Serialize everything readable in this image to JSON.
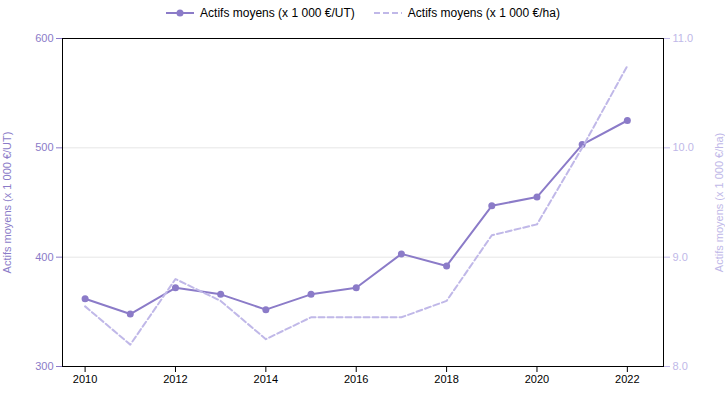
{
  "chart_data": {
    "type": "line",
    "x": [
      2010,
      2011,
      2012,
      2013,
      2014,
      2015,
      2016,
      2017,
      2018,
      2019,
      2020,
      2021,
      2022
    ],
    "xlim": [
      2009.5,
      2022.8
    ],
    "xticks": [
      2010,
      2012,
      2014,
      2016,
      2018,
      2020,
      2022
    ],
    "ylabel": "Actifs moyens (x 1 000 €/UT)",
    "y2label": "Actifs moyens (x 1 000 €/ha)",
    "ylim": [
      300,
      600
    ],
    "yticks": [
      300,
      400,
      500,
      600
    ],
    "y2lim": [
      8,
      11
    ],
    "y2ticks": [
      8,
      9,
      10,
      11
    ],
    "grid": true,
    "legend": "top",
    "series": [
      {
        "name": "Actifs moyens (x 1 000 €/UT)",
        "color": "#8b7bc8",
        "line_style": "solid",
        "marker": "circle",
        "values": [
          362,
          348,
          372,
          366,
          352,
          366,
          372,
          403,
          392,
          447,
          455,
          503,
          525
        ]
      },
      {
        "name": "Actifs moyens (x 1 000 €/ha)",
        "color": "#c0b8e8",
        "line_style": "dashed",
        "axis": "y2",
        "values": [
          8.55,
          8.2,
          8.8,
          8.6,
          8.25,
          8.45,
          8.45,
          8.45,
          8.6,
          9.2,
          9.3,
          10.0,
          10.75
        ]
      }
    ]
  }
}
